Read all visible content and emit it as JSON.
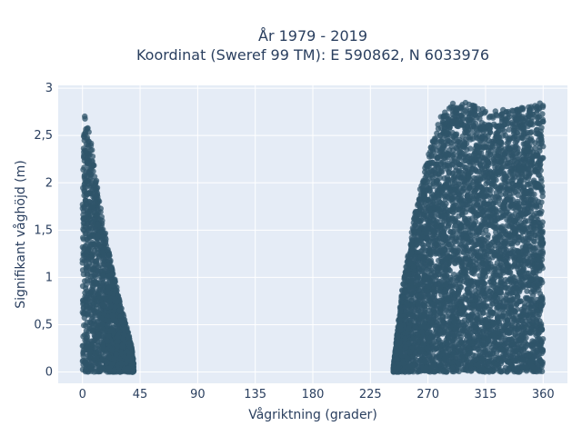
{
  "chart_data": {
    "type": "scatter",
    "title_line1": "År 1979 - 2019",
    "title_line2": "Koordinat (Sweref 99 TM): E 590862, N 6033976",
    "xlabel": "Vågriktning (grader)",
    "ylabel": "Signifikant våghöjd (m)",
    "xlim": [
      -19,
      379
    ],
    "ylim": [
      -0.12,
      3.03
    ],
    "x_ticks": [
      {
        "value": 0,
        "label": "0"
      },
      {
        "value": 45,
        "label": "45"
      },
      {
        "value": 90,
        "label": "90"
      },
      {
        "value": 135,
        "label": "135"
      },
      {
        "value": 180,
        "label": "180"
      },
      {
        "value": 225,
        "label": "225"
      },
      {
        "value": 270,
        "label": "270"
      },
      {
        "value": 315,
        "label": "315"
      },
      {
        "value": 360,
        "label": "360"
      }
    ],
    "y_ticks": [
      {
        "value": 0,
        "label": "0"
      },
      {
        "value": 0.5,
        "label": "0,5"
      },
      {
        "value": 1,
        "label": "1"
      },
      {
        "value": 1.5,
        "label": "1,5"
      },
      {
        "value": 2,
        "label": "2"
      },
      {
        "value": 2.5,
        "label": "2,5"
      },
      {
        "value": 3,
        "label": "3"
      }
    ],
    "grid": true,
    "plot_background": "#e5ecf6",
    "grid_color": "#ffffff",
    "marker_color": "#2f5469",
    "clusters": [
      {
        "x_range": [
          0,
          40
        ],
        "peak_height": 2.8,
        "envelope": [
          [
            0,
            2.8
          ],
          [
            5,
            2.6
          ],
          [
            10,
            2.1
          ],
          [
            20,
            1.3
          ],
          [
            25,
            1.0
          ],
          [
            30,
            0.7
          ],
          [
            38,
            0.3
          ],
          [
            40,
            0.1
          ]
        ]
      },
      {
        "x_range": [
          243,
          360
        ],
        "peak_height": 2.86,
        "envelope": [
          [
            243,
            0.05
          ],
          [
            245,
            0.3
          ],
          [
            250,
            0.9
          ],
          [
            255,
            1.3
          ],
          [
            260,
            1.7
          ],
          [
            265,
            2.0
          ],
          [
            270,
            2.3
          ],
          [
            280,
            2.7
          ],
          [
            290,
            2.85
          ],
          [
            300,
            2.85
          ],
          [
            320,
            2.75
          ],
          [
            340,
            2.8
          ],
          [
            360,
            2.85
          ]
        ]
      }
    ]
  }
}
